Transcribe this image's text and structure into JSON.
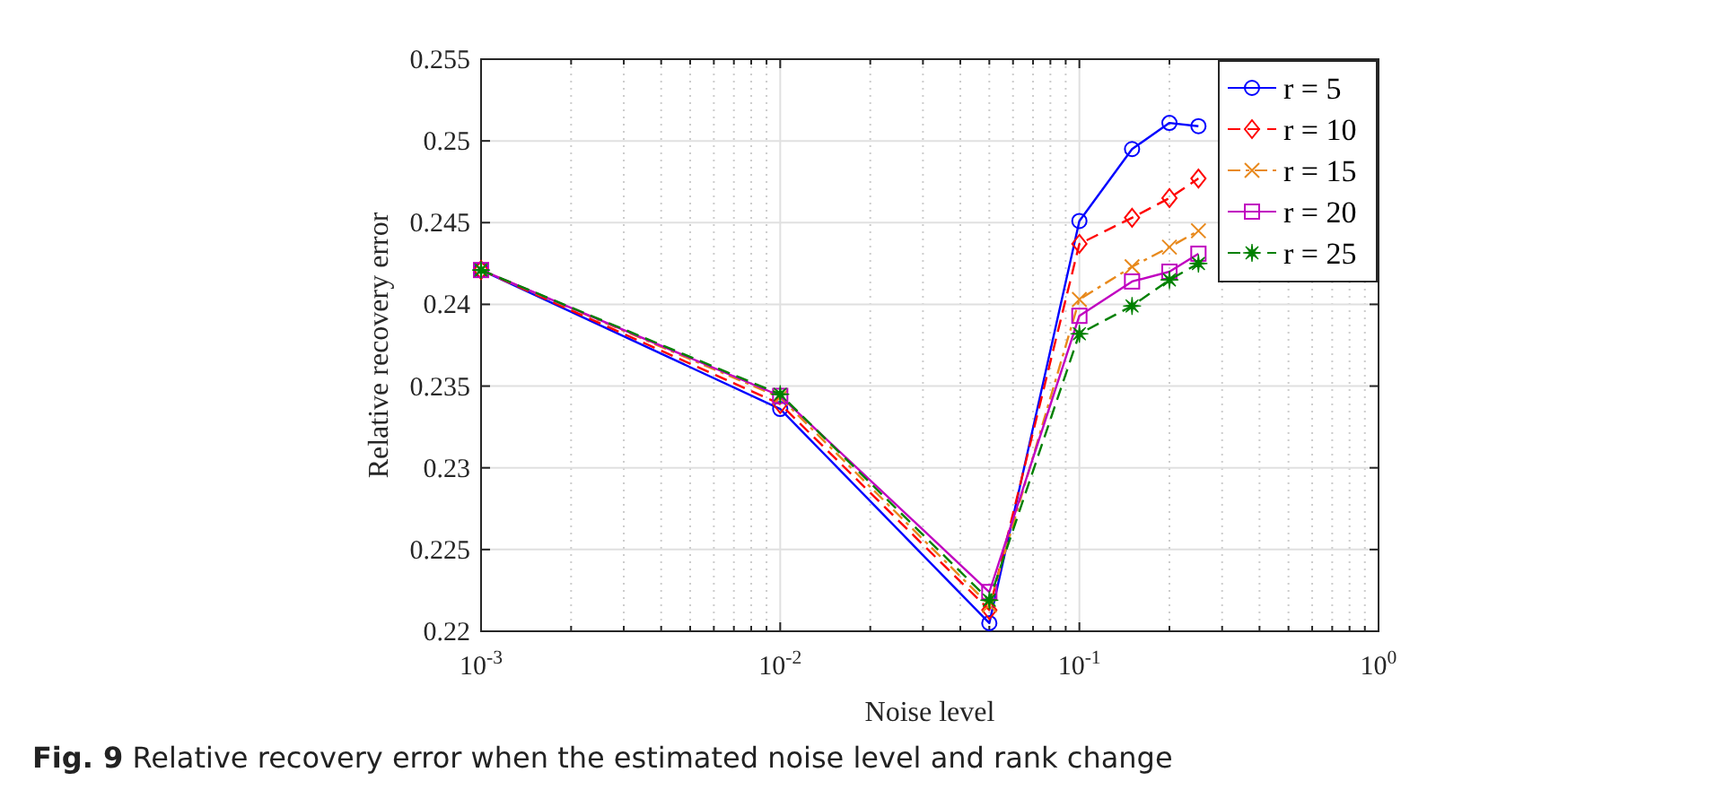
{
  "chart_data": {
    "type": "line",
    "xlabel": "Noise level",
    "ylabel": "Relative recovery error",
    "log": "x",
    "x": [
      0.001,
      0.01,
      0.05,
      0.1,
      0.15,
      0.2,
      0.25
    ],
    "xlim": [
      0.001,
      1
    ],
    "xticks": [
      {
        "value": 0.001,
        "label": "10$^{-3}$"
      },
      {
        "value": 0.01,
        "label": "10$^{-2}$"
      },
      {
        "value": 0.1,
        "label": "10$^{-1}$"
      },
      {
        "value": 1,
        "label": "10$^{0}$"
      }
    ],
    "ylim": [
      0.22,
      0.255
    ],
    "yticks": [
      0.22,
      0.225,
      0.23,
      0.235,
      0.24,
      0.245,
      0.25,
      0.255
    ],
    "grid": true,
    "legend": "top right",
    "series": [
      {
        "name": "r = 5",
        "color": "#0000ff",
        "marker": "circle",
        "line_style": "solid",
        "values": [
          0.2421,
          0.2336,
          0.2205,
          0.2451,
          0.2495,
          0.2511,
          0.2509
        ]
      },
      {
        "name": "r = 10",
        "color": "#ff0000",
        "marker": "diamond",
        "line_style": "dashed",
        "values": [
          0.2421,
          0.2339,
          0.2213,
          0.2437,
          0.2453,
          0.2465,
          0.2477
        ]
      },
      {
        "name": "r = 15",
        "color": "#e8891c",
        "marker": "cross",
        "line_style": "dashdot",
        "values": [
          0.2421,
          0.2343,
          0.2216,
          0.2403,
          0.2423,
          0.2435,
          0.2445
        ]
      },
      {
        "name": "r = 20",
        "color": "#c000c0",
        "marker": "square",
        "line_style": "solid",
        "values": [
          0.2421,
          0.2344,
          0.2224,
          0.2393,
          0.2414,
          0.242,
          0.2431
        ]
      },
      {
        "name": "r = 25",
        "color": "#008000",
        "marker": "star",
        "line_style": "dashed",
        "values": [
          0.2421,
          0.2345,
          0.2219,
          0.2382,
          0.2399,
          0.2415,
          0.2425
        ]
      }
    ],
    "annotations": [
      "Fig. 9 Relative recovery error when the estimated noise level and rank change"
    ]
  }
}
